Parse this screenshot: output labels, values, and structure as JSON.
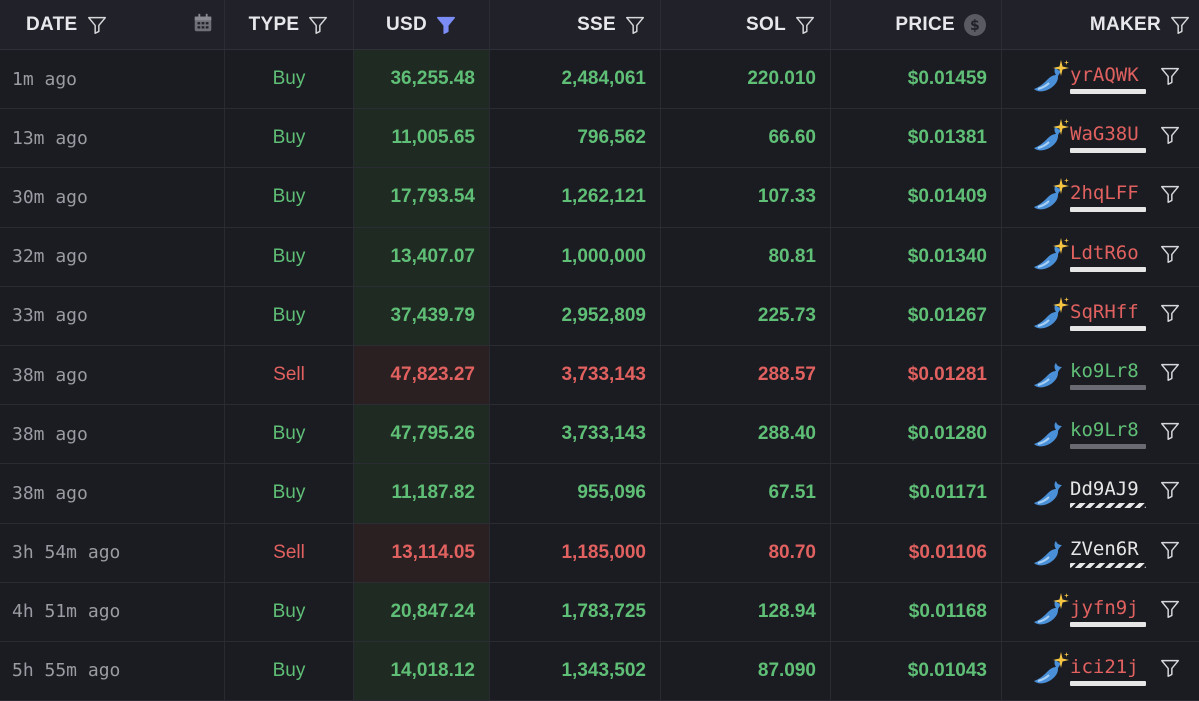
{
  "header": {
    "date": "DATE",
    "type": "TYPE",
    "usd": "USD",
    "sse": "SSE",
    "sol": "SOL",
    "price": "PRICE",
    "maker": "MAKER"
  },
  "colors": {
    "buy": "#5fbf76",
    "sell": "#e0615f",
    "accent_filter": "#7b8cf5"
  },
  "icons": {
    "filter": "filter-icon",
    "calendar": "calendar-icon",
    "currency": "dollar-circle-icon",
    "whale": "whale-icon",
    "sparkle": "sparkle-icon"
  },
  "rows": [
    {
      "date": "1m ago",
      "type": "Buy",
      "usd": "36,255.48",
      "sse": "2,484,061",
      "sol": "220.010",
      "price": "$0.01459",
      "maker": "yrAQWK",
      "side": "buy",
      "badge": "white",
      "sparkle": true
    },
    {
      "date": "13m ago",
      "type": "Buy",
      "usd": "11,005.65",
      "sse": "796,562",
      "sol": "66.60",
      "price": "$0.01381",
      "maker": "WaG38U",
      "side": "buy",
      "badge": "white",
      "sparkle": true
    },
    {
      "date": "30m ago",
      "type": "Buy",
      "usd": "17,793.54",
      "sse": "1,262,121",
      "sol": "107.33",
      "price": "$0.01409",
      "maker": "2hqLFF",
      "side": "buy",
      "badge": "white",
      "sparkle": true
    },
    {
      "date": "32m ago",
      "type": "Buy",
      "usd": "13,407.07",
      "sse": "1,000,000",
      "sol": "80.81",
      "price": "$0.01340",
      "maker": "LdtR6o",
      "side": "buy",
      "badge": "white",
      "sparkle": true
    },
    {
      "date": "33m ago",
      "type": "Buy",
      "usd": "37,439.79",
      "sse": "2,952,809",
      "sol": "225.73",
      "price": "$0.01267",
      "maker": "SqRHff",
      "side": "buy",
      "badge": "white",
      "sparkle": true
    },
    {
      "date": "38m ago",
      "type": "Sell",
      "usd": "47,823.27",
      "sse": "3,733,143",
      "sol": "288.57",
      "price": "$0.01281",
      "maker": "ko9Lr8",
      "side": "sell",
      "badge": "gray",
      "sparkle": false
    },
    {
      "date": "38m ago",
      "type": "Buy",
      "usd": "47,795.26",
      "sse": "3,733,143",
      "sol": "288.40",
      "price": "$0.01280",
      "maker": "ko9Lr8",
      "side": "buy",
      "badge": "gray",
      "sparkle": false
    },
    {
      "date": "38m ago",
      "type": "Buy",
      "usd": "11,187.82",
      "sse": "955,096",
      "sol": "67.51",
      "price": "$0.01171",
      "maker": "Dd9AJ9",
      "side": "buy",
      "badge": "striped",
      "sparkle": false
    },
    {
      "date": "3h 54m ago",
      "type": "Sell",
      "usd": "13,114.05",
      "sse": "1,185,000",
      "sol": "80.70",
      "price": "$0.01106",
      "maker": "ZVen6R",
      "side": "sell",
      "badge": "striped",
      "sparkle": false
    },
    {
      "date": "4h 51m ago",
      "type": "Buy",
      "usd": "20,847.24",
      "sse": "1,783,725",
      "sol": "128.94",
      "price": "$0.01168",
      "maker": "jyfn9j",
      "side": "buy",
      "badge": "white",
      "sparkle": true
    },
    {
      "date": "5h 55m ago",
      "type": "Buy",
      "usd": "14,018.12",
      "sse": "1,343,502",
      "sol": "87.090",
      "price": "$0.01043",
      "maker": "ici21j",
      "side": "buy",
      "badge": "white",
      "sparkle": true
    }
  ]
}
